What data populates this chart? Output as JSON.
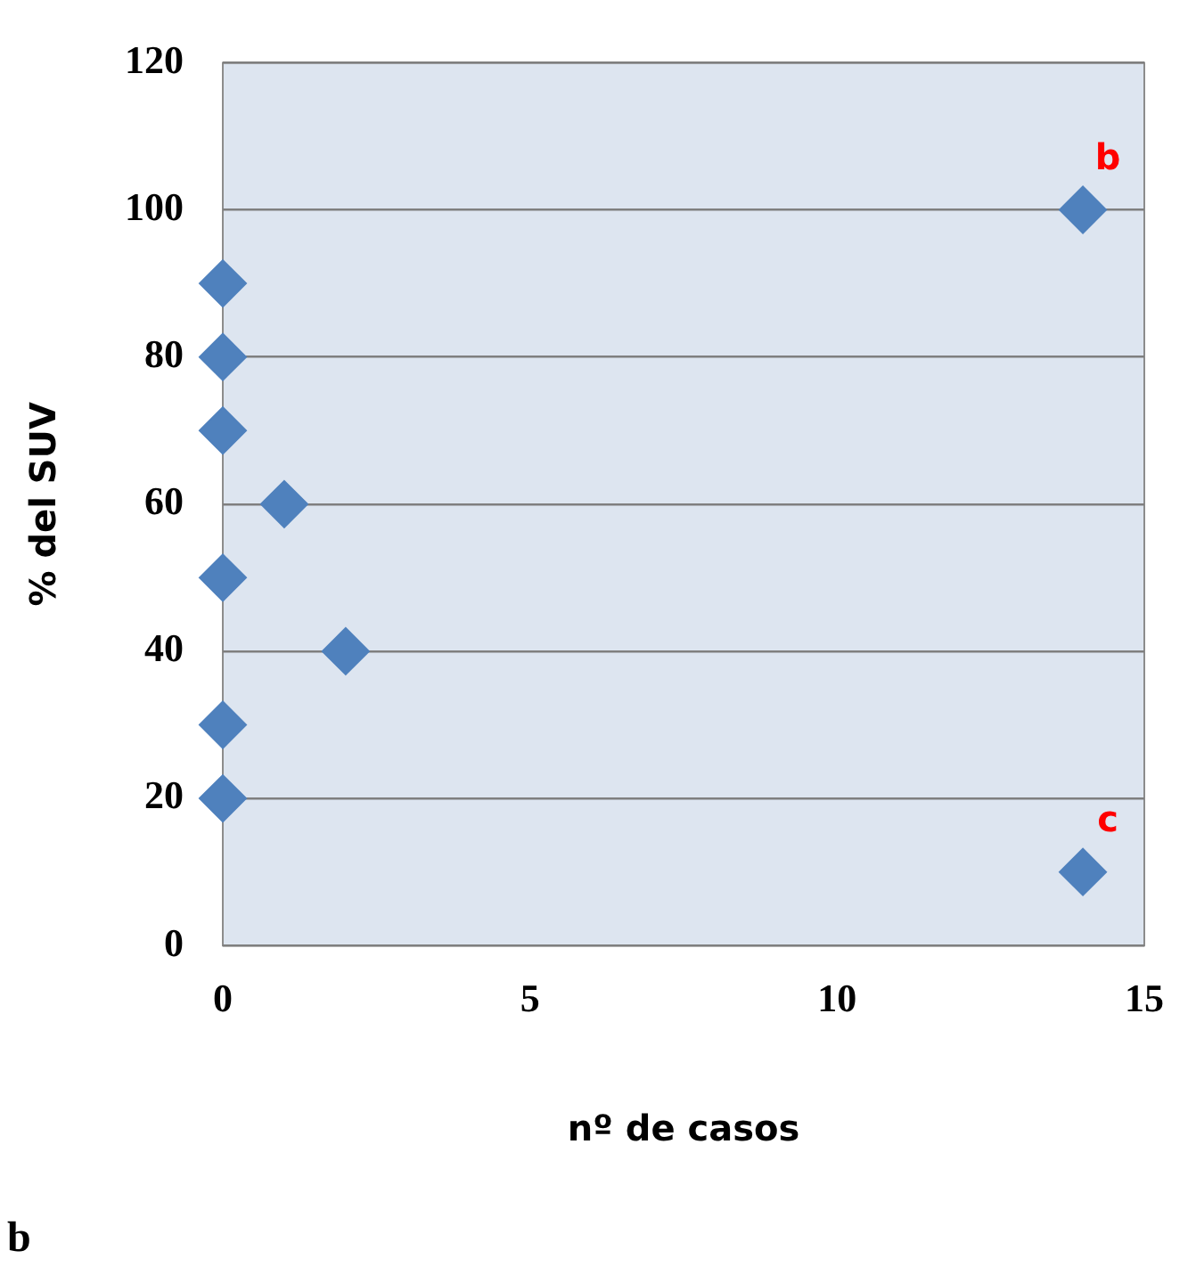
{
  "chart_data": {
    "type": "scatter",
    "xlabel": "nº de casos",
    "ylabel": "% del SUV",
    "x": [
      0,
      0,
      0,
      1,
      0,
      2,
      0,
      0,
      14,
      14
    ],
    "values": [
      90,
      80,
      70,
      60,
      50,
      40,
      30,
      20,
      100,
      10
    ],
    "color": "#4f81bd",
    "marker": "diamond",
    "xlim": [
      0,
      15
    ],
    "xticks": [
      0,
      5,
      10,
      15
    ],
    "ylim": [
      0,
      120
    ],
    "yticks": [
      0,
      20,
      40,
      60,
      80,
      100,
      120
    ],
    "grid": "y",
    "legend": false,
    "annotations": [
      {
        "text": "b",
        "x": 14,
        "y": 100
      },
      {
        "text": "c",
        "x": 14,
        "y": 10
      },
      "b"
    ]
  }
}
